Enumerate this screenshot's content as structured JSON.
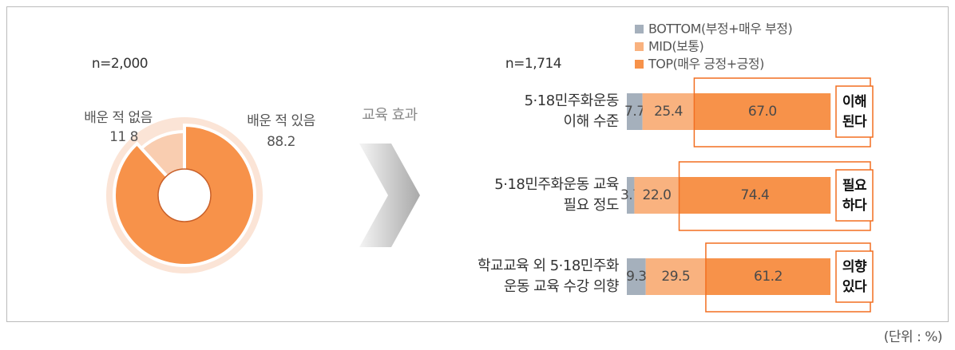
{
  "chart_data": [
    {
      "type": "pie",
      "subtitle": "n=2,000",
      "categories": [
        "배운 적 없음",
        "배운 적 있음"
      ],
      "values": [
        11.8,
        88.2
      ],
      "value_labels": [
        "11 8",
        "88.2"
      ],
      "colors": [
        "#f9cdb0",
        "#f7924a"
      ],
      "ring_color": "#fbe4d6"
    },
    {
      "type": "bar",
      "orientation": "horizontal",
      "stacked": true,
      "subtitle": "n=1,714",
      "categories": [
        [
          "5·18민주화운동",
          "이해 수준"
        ],
        [
          "5·18민주화운동  교육",
          "필요 정도"
        ],
        [
          "학교교육  외 5·18민주화",
          "운동  교육  수강  의향"
        ]
      ],
      "xlim": [
        0,
        100
      ],
      "series": [
        {
          "name": "BOTTOM(부정+매우  부정)",
          "color": "#a5b0bc",
          "values": [
            7.7,
            3.7,
            9.3
          ]
        },
        {
          "name": "MID(보통)",
          "color": "#f9b27f",
          "values": [
            25.4,
            22.0,
            29.5
          ],
          "value_labels": [
            "25.4",
            "22.0",
            "29.5"
          ]
        },
        {
          "name": "TOP(매우  긍정+긍정)",
          "color": "#f7924a",
          "values": [
            67.0,
            74.4,
            61.2
          ],
          "value_labels": [
            "67.0",
            "74.4",
            "61.2"
          ]
        }
      ],
      "annotations": [
        [
          "이해",
          "된다"
        ],
        [
          "필요",
          "하다"
        ],
        [
          "의향",
          "있다"
        ]
      ],
      "highlight_color": "#f26f21"
    }
  ],
  "arrow_label": "교육 효과",
  "unit": "(단위 : %)"
}
